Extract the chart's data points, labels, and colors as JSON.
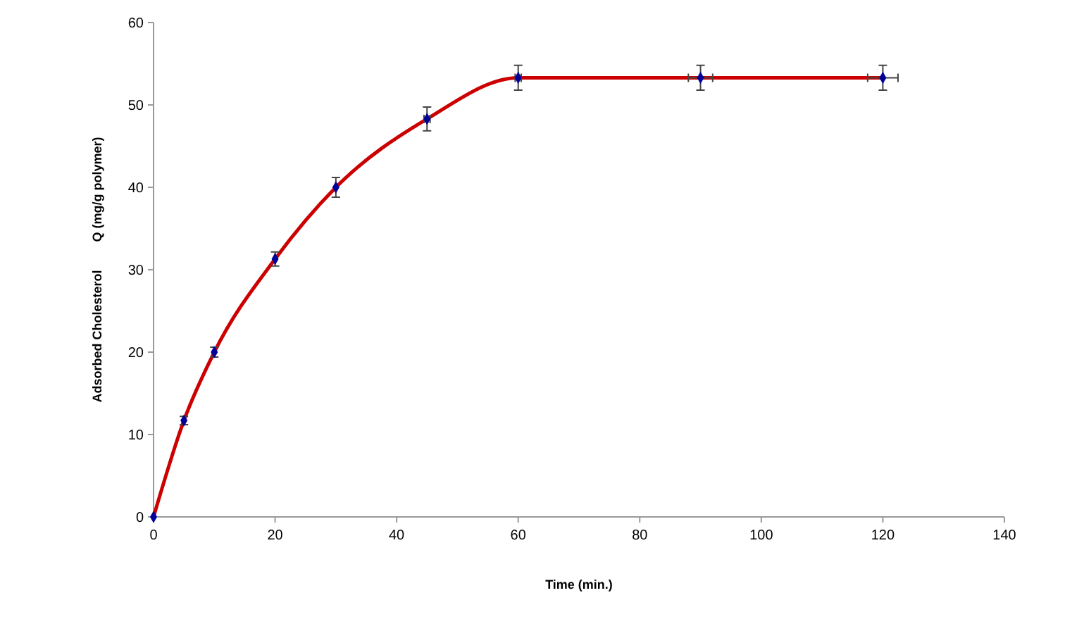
{
  "chart_data": {
    "type": "line",
    "xlabel": "Time (min.)",
    "ylabel": "Adsorbed Cholesterol        Q (mg/g polymer)",
    "x": [
      0,
      5,
      10,
      20,
      30,
      45,
      60,
      90,
      120
    ],
    "series": [
      {
        "color": "#cc0000",
        "values": [
          0,
          11.7,
          20,
          31.3,
          40,
          48.3,
          53.3,
          53.3,
          53.3
        ],
        "errors": [
          null,
          0.5,
          0.6,
          0.85,
          1.2,
          1.45,
          1.5,
          1.5,
          1.5
        ],
        "xerrors": [
          null,
          null,
          null,
          null,
          null,
          0.5,
          0.5,
          2,
          2.5
        ]
      }
    ],
    "marker": "diamond",
    "line_style": "solid",
    "grid": false,
    "xlim": [
      0,
      140
    ],
    "xticks": [
      0,
      20,
      40,
      60,
      80,
      100,
      120,
      140
    ],
    "ylim": [
      0,
      60
    ],
    "yticks": [
      0,
      10,
      20,
      30,
      40,
      50,
      60
    ]
  }
}
